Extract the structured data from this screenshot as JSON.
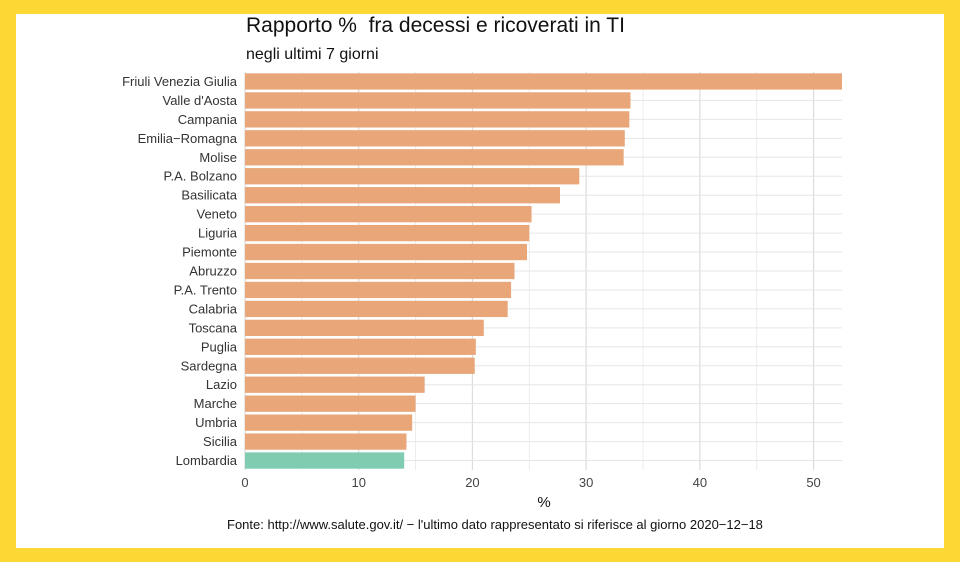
{
  "chart_data": {
    "type": "bar",
    "orientation": "horizontal",
    "title": "Rapporto %  fra decessi e ricoverati in TI",
    "subtitle": "negli ultimi 7 giorni",
    "xlabel": "%",
    "ylabel": "",
    "xlim": [
      0,
      52.5
    ],
    "xticks": [
      0,
      10,
      20,
      30,
      40,
      50
    ],
    "grid": true,
    "legend": "none",
    "categories": [
      "Friuli Venezia Giulia",
      "Valle d'Aosta",
      "Campania",
      "Emilia−Romagna",
      "Molise",
      "P.A. Bolzano",
      "Basilicata",
      "Veneto",
      "Liguria",
      "Piemonte",
      "Abruzzo",
      "P.A. Trento",
      "Calabria",
      "Toscana",
      "Puglia",
      "Sardegna",
      "Lazio",
      "Marche",
      "Umbria",
      "Sicilia",
      "Lombardia"
    ],
    "values": [
      52.5,
      33.9,
      33.8,
      33.4,
      33.3,
      29.4,
      27.7,
      25.2,
      25.0,
      24.8,
      23.7,
      23.4,
      23.1,
      21.0,
      20.3,
      20.2,
      15.8,
      15.0,
      14.7,
      14.2,
      14.0
    ],
    "highlight": "Lombardia",
    "colors": {
      "bar": "#E8A679",
      "highlight": "#7FCCB1"
    },
    "caption": "Fonte: http://www.salute.gov.it/ − l'ultimo dato rappresentato si riferisce al giorno 2020−12−18"
  }
}
